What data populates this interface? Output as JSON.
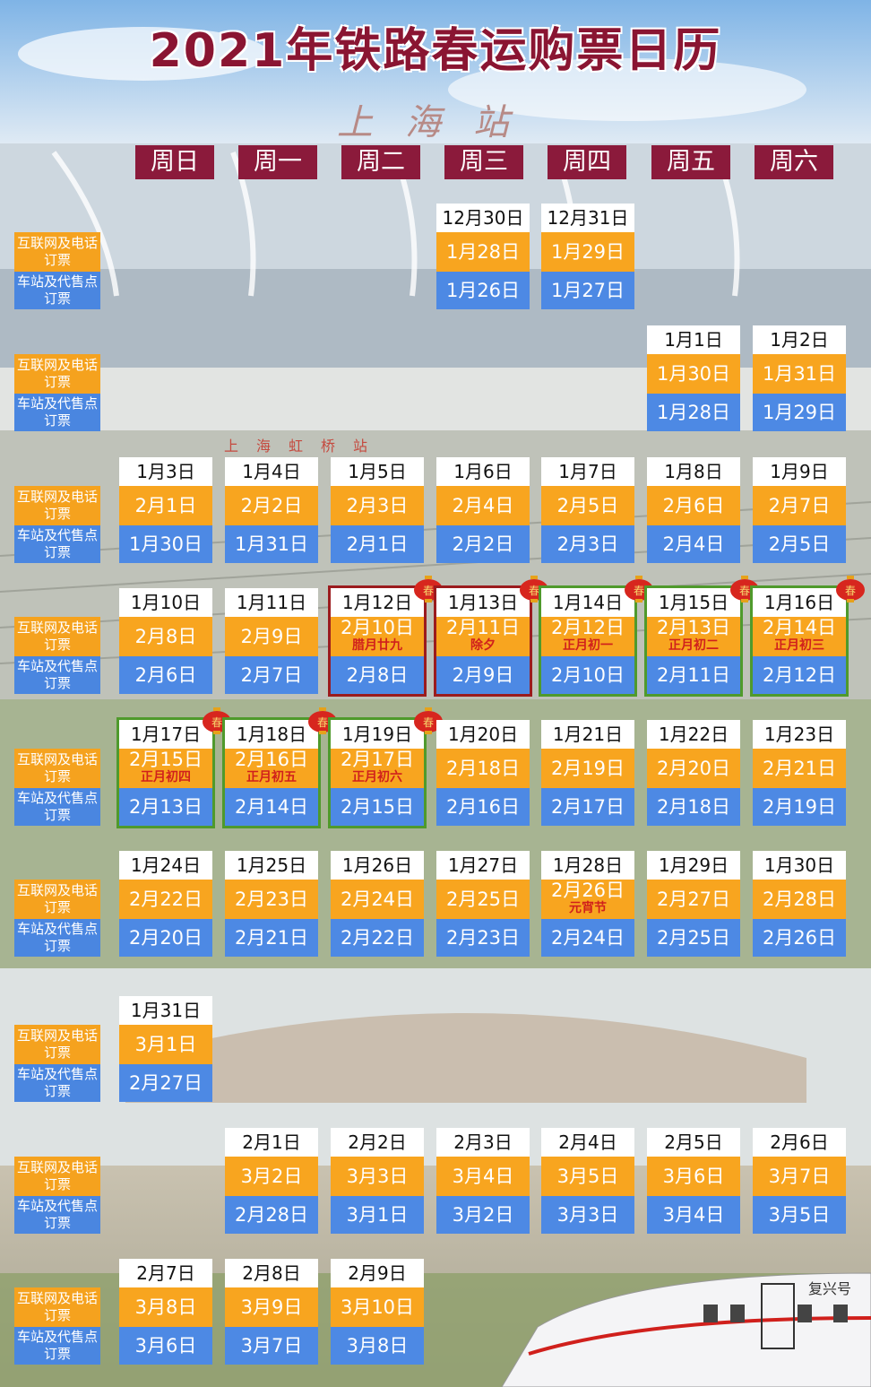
{
  "title": "2021年铁路春运购票日历",
  "subtitle": "上海站",
  "station_sign": "上海虹桥站",
  "train_name": "复兴号",
  "colors": {
    "weekday_bg": "#8b1a3b",
    "online": "#f8a51f",
    "station": "#4d89e4",
    "holiday_text": "#d0201c",
    "red_border": "#9b1b1e",
    "green_border": "#4f9a2c"
  },
  "weekdays": [
    "周日",
    "周一",
    "周二",
    "周三",
    "周四",
    "周五",
    "周六"
  ],
  "row_labels": {
    "online": "互联网及电话订票",
    "station": "车站及代售点订票"
  },
  "weeks": [
    {
      "cells": [
        {
          "col": 3,
          "date": "12月30日",
          "online": "1月28日",
          "station": "1月26日"
        },
        {
          "col": 4,
          "date": "12月31日",
          "online": "1月29日",
          "station": "1月27日"
        }
      ]
    },
    {
      "cells": [
        {
          "col": 5,
          "date": "1月1日",
          "online": "1月30日",
          "station": "1月28日"
        },
        {
          "col": 6,
          "date": "1月2日",
          "online": "1月31日",
          "station": "1月29日"
        }
      ]
    },
    {
      "cells": [
        {
          "col": 0,
          "date": "1月3日",
          "online": "2月1日",
          "station": "1月30日"
        },
        {
          "col": 1,
          "date": "1月4日",
          "online": "2月2日",
          "station": "1月31日"
        },
        {
          "col": 2,
          "date": "1月5日",
          "online": "2月3日",
          "station": "2月1日"
        },
        {
          "col": 3,
          "date": "1月6日",
          "online": "2月4日",
          "station": "2月2日"
        },
        {
          "col": 4,
          "date": "1月7日",
          "online": "2月5日",
          "station": "2月3日"
        },
        {
          "col": 5,
          "date": "1月8日",
          "online": "2月6日",
          "station": "2月4日"
        },
        {
          "col": 6,
          "date": "1月9日",
          "online": "2月7日",
          "station": "2月5日"
        }
      ]
    },
    {
      "cells": [
        {
          "col": 0,
          "date": "1月10日",
          "online": "2月8日",
          "station": "2月6日"
        },
        {
          "col": 1,
          "date": "1月11日",
          "online": "2月9日",
          "station": "2月7日"
        },
        {
          "col": 2,
          "date": "1月12日",
          "online": "2月10日",
          "festival": "腊月廿九",
          "station": "2月8日",
          "border": "red"
        },
        {
          "col": 3,
          "date": "1月13日",
          "online": "2月11日",
          "festival": "除夕",
          "station": "2月9日",
          "border": "red"
        },
        {
          "col": 4,
          "date": "1月14日",
          "online": "2月12日",
          "festival": "正月初一",
          "station": "2月10日",
          "border": "green"
        },
        {
          "col": 5,
          "date": "1月15日",
          "online": "2月13日",
          "festival": "正月初二",
          "station": "2月11日",
          "border": "green"
        },
        {
          "col": 6,
          "date": "1月16日",
          "online": "2月14日",
          "festival": "正月初三",
          "station": "2月12日",
          "border": "green"
        }
      ]
    },
    {
      "cells": [
        {
          "col": 0,
          "date": "1月17日",
          "online": "2月15日",
          "festival": "正月初四",
          "station": "2月13日",
          "border": "green"
        },
        {
          "col": 1,
          "date": "1月18日",
          "online": "2月16日",
          "festival": "正月初五",
          "station": "2月14日",
          "border": "green"
        },
        {
          "col": 2,
          "date": "1月19日",
          "online": "2月17日",
          "festival": "正月初六",
          "station": "2月15日",
          "border": "green"
        },
        {
          "col": 3,
          "date": "1月20日",
          "online": "2月18日",
          "station": "2月16日"
        },
        {
          "col": 4,
          "date": "1月21日",
          "online": "2月19日",
          "station": "2月17日"
        },
        {
          "col": 5,
          "date": "1月22日",
          "online": "2月20日",
          "station": "2月18日"
        },
        {
          "col": 6,
          "date": "1月23日",
          "online": "2月21日",
          "station": "2月19日"
        }
      ]
    },
    {
      "cells": [
        {
          "col": 0,
          "date": "1月24日",
          "online": "2月22日",
          "station": "2月20日"
        },
        {
          "col": 1,
          "date": "1月25日",
          "online": "2月23日",
          "station": "2月21日"
        },
        {
          "col": 2,
          "date": "1月26日",
          "online": "2月24日",
          "station": "2月22日"
        },
        {
          "col": 3,
          "date": "1月27日",
          "online": "2月25日",
          "station": "2月23日"
        },
        {
          "col": 4,
          "date": "1月28日",
          "online": "2月26日",
          "festival": "元宵节",
          "station": "2月24日"
        },
        {
          "col": 5,
          "date": "1月29日",
          "online": "2月27日",
          "station": "2月25日"
        },
        {
          "col": 6,
          "date": "1月30日",
          "online": "2月28日",
          "station": "2月26日"
        }
      ]
    },
    {
      "cells": [
        {
          "col": 0,
          "date": "1月31日",
          "online": "3月1日",
          "station": "2月27日"
        }
      ]
    },
    {
      "cells": [
        {
          "col": 1,
          "date": "2月1日",
          "online": "3月2日",
          "station": "2月28日"
        },
        {
          "col": 2,
          "date": "2月2日",
          "online": "3月3日",
          "station": "3月1日"
        },
        {
          "col": 3,
          "date": "2月3日",
          "online": "3月4日",
          "station": "3月2日"
        },
        {
          "col": 4,
          "date": "2月4日",
          "online": "3月5日",
          "station": "3月3日"
        },
        {
          "col": 5,
          "date": "2月5日",
          "online": "3月6日",
          "station": "3月4日"
        },
        {
          "col": 6,
          "date": "2月6日",
          "online": "3月7日",
          "station": "3月5日"
        }
      ]
    },
    {
      "cells": [
        {
          "col": 0,
          "date": "2月7日",
          "online": "3月8日",
          "station": "3月6日"
        },
        {
          "col": 1,
          "date": "2月8日",
          "online": "3月9日",
          "station": "3月7日"
        },
        {
          "col": 2,
          "date": "2月9日",
          "online": "3月10日",
          "station": "3月8日"
        }
      ]
    }
  ],
  "lantern_char": "春"
}
